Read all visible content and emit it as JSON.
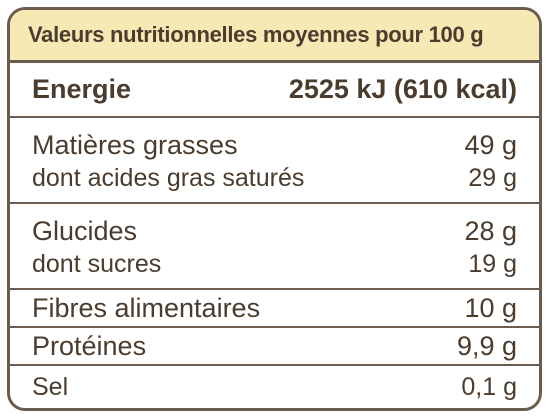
{
  "header": {
    "title": "Valeurs nutritionnelles moyennes pour 100 g"
  },
  "energy": {
    "label": "Energie",
    "value": "2525 kJ (610 kcal)"
  },
  "rows": [
    {
      "label": "Matières grasses",
      "value": "49 g"
    },
    {
      "label": "dont acides gras saturés",
      "value": "29 g"
    },
    {
      "label": "Glucides",
      "value": "28 g"
    },
    {
      "label": "dont sucres",
      "value": "19 g"
    },
    {
      "label": "Fibres alimentaires",
      "value": "10 g"
    },
    {
      "label": "Protéines",
      "value": "9,9 g"
    },
    {
      "label": "Sel",
      "value": "0,1 g"
    }
  ],
  "colors": {
    "header_bg": "#f7e9b4",
    "border": "#6b5d4d",
    "text": "#4a3c2e"
  }
}
